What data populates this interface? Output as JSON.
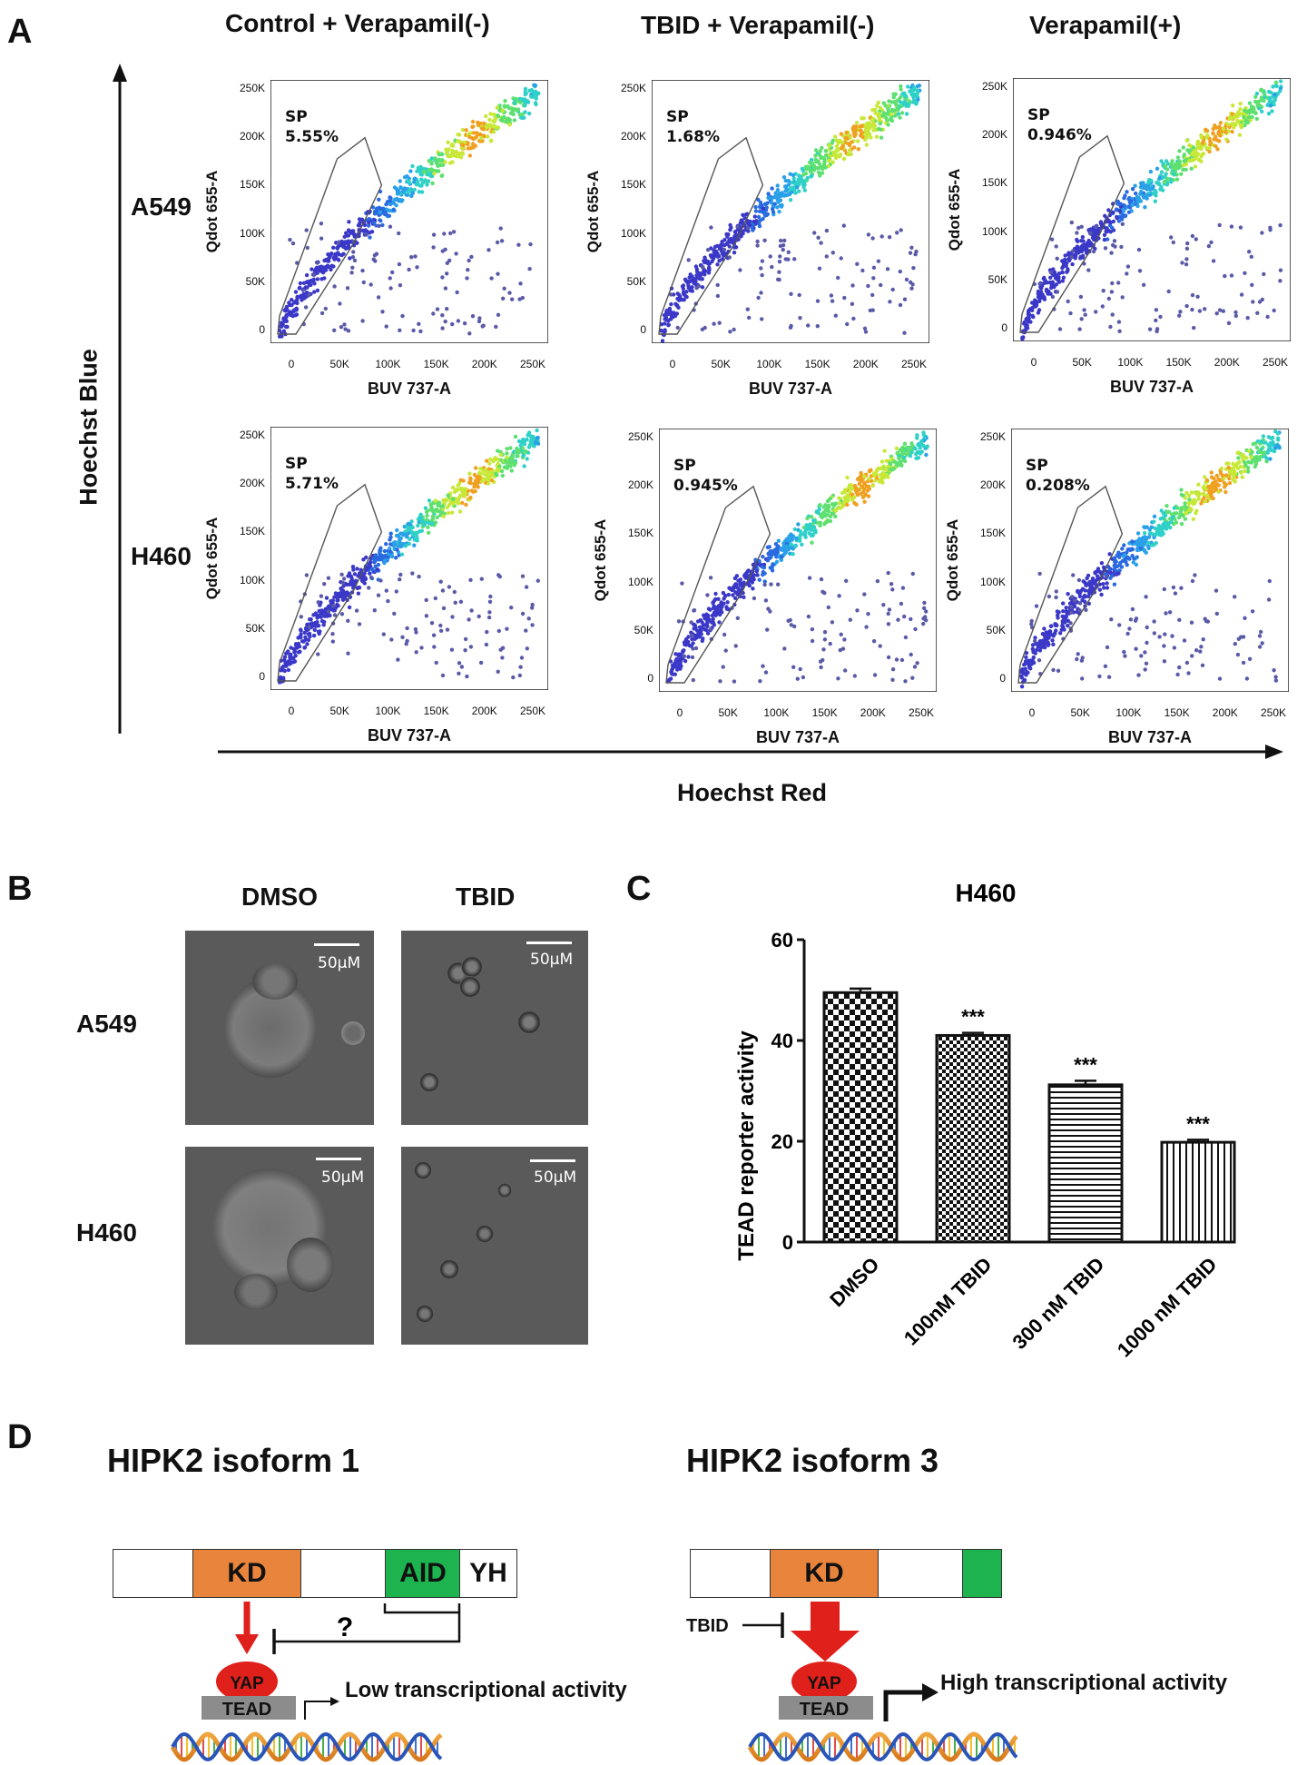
{
  "panelA": {
    "letter": "A",
    "col_titles": [
      "Control + Verapamil(-)",
      "TBID +  Verapamil(-)",
      "Verapamil(+)"
    ],
    "row_labels": [
      "A549",
      "H460"
    ],
    "y_axis_big": "Hoechst Blue",
    "x_axis_big": "Hoechst Red",
    "plot_ylabel": "Qdot 655-A",
    "plot_xlabel": "BUV 737-A",
    "y_ticks": [
      "250K",
      "200K",
      "150K",
      "100K",
      "50K",
      "0"
    ],
    "x_ticks": [
      "0",
      "50K",
      "100K",
      "150K",
      "200K",
      "250K"
    ],
    "sp_label": "SP",
    "sp_values": [
      [
        "5.55%",
        "1.68%",
        "0.946%"
      ],
      [
        "5.71%",
        "0.945%",
        "0.208%"
      ]
    ]
  },
  "panelB": {
    "letter": "B",
    "col_titles": [
      "DMSO",
      "TBID"
    ],
    "row_labels": [
      "A549",
      "H460"
    ],
    "scale_text": "50μM"
  },
  "panelC": {
    "letter": "C",
    "chart_data": {
      "type": "bar",
      "title": "H460",
      "ylabel": "TEAD reporter activity",
      "categories": [
        "DMSO",
        "100nM TBID",
        "300 nM TBID",
        "1000 nM TBID"
      ],
      "values": [
        49.5,
        41,
        31.2,
        19.8
      ],
      "errors": [
        0.8,
        0.5,
        0.8,
        0.5
      ],
      "significance": [
        "",
        "***",
        "***",
        "***"
      ],
      "ylim": [
        0,
        60
      ],
      "y_ticks": [
        0,
        20,
        40,
        60
      ]
    }
  },
  "panelD": {
    "letter": "D",
    "isoform1": {
      "title": "HIPK2 isoform 1",
      "kd": "KD",
      "aid": "AID",
      "yh": "YH",
      "question": "?",
      "yap": "YAP",
      "tead": "TEAD",
      "activity": "Low transcriptional activity"
    },
    "isoform3": {
      "title": "HIPK2 isoform 3",
      "kd": "KD",
      "tbid": "TBID",
      "yap": "YAP",
      "tead": "TEAD",
      "activity": "High transcriptional activity"
    }
  }
}
